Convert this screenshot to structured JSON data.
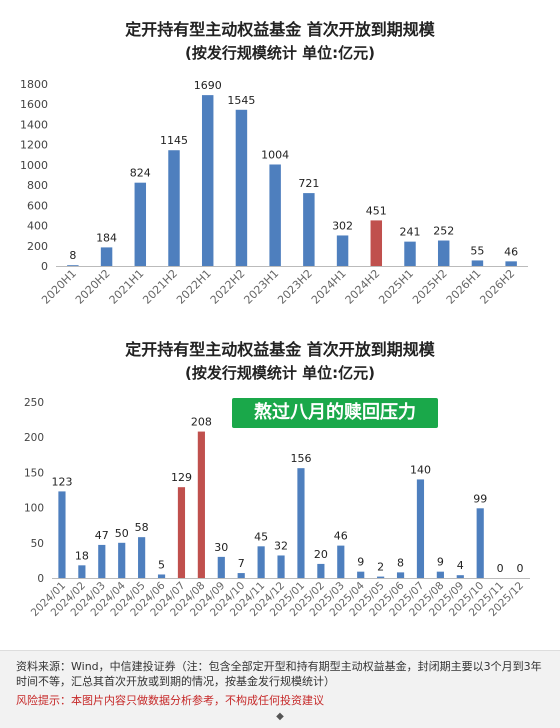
{
  "chart_data": [
    {
      "type": "bar",
      "title": "定开持有型主动权益基金 首次开放到期规模",
      "subtitle": "(按发行规模统计 单位:亿元)",
      "categories": [
        "2020H1",
        "2020H2",
        "2021H1",
        "2021H2",
        "2022H1",
        "2022H2",
        "2023H1",
        "2023H2",
        "2024H1",
        "2024H2",
        "2025H1",
        "2025H2",
        "2026H1",
        "2026H2"
      ],
      "values": [
        8,
        184,
        824,
        1145,
        1690,
        1545,
        1004,
        721,
        302,
        451,
        241,
        252,
        55,
        46
      ],
      "highlight_index": [
        9
      ],
      "yticks": [
        0,
        200,
        400,
        600,
        800,
        1000,
        1200,
        1400,
        1600,
        1800
      ],
      "ylim": [
        0,
        1800
      ],
      "colors": {
        "bar": "#4e7fbe",
        "highlight": "#c0504d"
      }
    },
    {
      "type": "bar",
      "title": "定开持有型主动权益基金 首次开放到期规模",
      "subtitle": "(按发行规模统计 单位:亿元)",
      "categories": [
        "2024/01",
        "2024/02",
        "2024/03",
        "2024/04",
        "2024/05",
        "2024/06",
        "2024/07",
        "2024/08",
        "2024/09",
        "2024/10",
        "2024/11",
        "2024/12",
        "2025/01",
        "2025/02",
        "2025/03",
        "2025/04",
        "2025/05",
        "2025/06",
        "2025/07",
        "2025/08",
        "2025/09",
        "2025/10",
        "2025/11",
        "2025/12"
      ],
      "values": [
        123,
        18,
        47,
        50,
        58,
        5,
        129,
        208,
        30,
        7,
        45,
        32,
        156,
        20,
        46,
        9,
        2,
        8,
        140,
        9,
        4,
        99,
        0,
        0
      ],
      "highlight_index": [
        6,
        7
      ],
      "yticks": [
        0,
        50,
        100,
        150,
        200,
        250
      ],
      "ylim": [
        0,
        250
      ],
      "colors": {
        "bar": "#4e7fbe",
        "highlight": "#c0504d"
      },
      "annotation": "熬过八月的赎回压力"
    }
  ],
  "footer": {
    "source": "资料来源：Wind，中信建投证券（注：包含全部定开型和持有期型主动权益基金，封闭期主要以3个月到3年时间不等，汇总其首次开放或到期的情况，按基金发行规模统计）",
    "risk": "风险提示：本图片内容只做数据分析参考，不构成任何投资建议"
  }
}
